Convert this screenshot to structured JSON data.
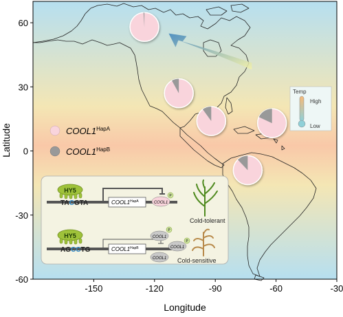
{
  "map": {
    "x_axis": {
      "title": "Longitude",
      "ticks": [
        "-150",
        "-120",
        "-90",
        "-60",
        "-30"
      ],
      "range": [
        -180,
        -30
      ]
    },
    "y_axis": {
      "title": "Latitude",
      "ticks": [
        "60",
        "30",
        "0",
        "-30",
        "-60"
      ],
      "range": [
        -60,
        70
      ]
    },
    "background": {
      "warm": "#f9c8a8",
      "mid": "#f4e6b4",
      "cool": "#b6dff0"
    },
    "colors": {
      "hapA": "#f9d4dc",
      "hapB": "#999999",
      "arrow_start": "#f5f2a8",
      "arrow_end": "#3e84bd"
    },
    "sites": [
      {
        "lon": -125,
        "lat": 58,
        "hapB_fraction": 0.01
      },
      {
        "lon": -108,
        "lat": 27,
        "hapB_fraction": 0.08
      },
      {
        "lon": -92,
        "lat": 14,
        "hapB_fraction": 0.1
      },
      {
        "lon": -62,
        "lat": 13,
        "hapB_fraction": 0.18
      },
      {
        "lon": -74,
        "lat": -9,
        "hapB_fraction": 0.12
      }
    ],
    "migration_arrow": {
      "from": [
        -72,
        40
      ],
      "to": [
        -113,
        55
      ]
    }
  },
  "legend": {
    "hapA": {
      "gene": "COOL1",
      "allele": "HapA"
    },
    "hapB": {
      "gene": "COOL1",
      "allele": "HapB"
    }
  },
  "thermometer": {
    "title": "Temp",
    "high": "High",
    "low": "Low"
  },
  "model": {
    "tolerant": {
      "factor": "HY5",
      "motif": [
        "T",
        "A",
        "C",
        "G",
        "T",
        "A"
      ],
      "gene": "COOL1",
      "allele": "HapA",
      "protein": "COOL1",
      "phenotype": "Cold-tolerant"
    },
    "sensitive": {
      "factor": "HY5",
      "motif": [
        "A",
        "G",
        "C",
        "C",
        "T",
        "G"
      ],
      "gene": "COOL1",
      "allele": "HapB",
      "protein": "COOL1",
      "phenotype": "Cold-sensitive"
    },
    "phospho_mark": "P"
  }
}
